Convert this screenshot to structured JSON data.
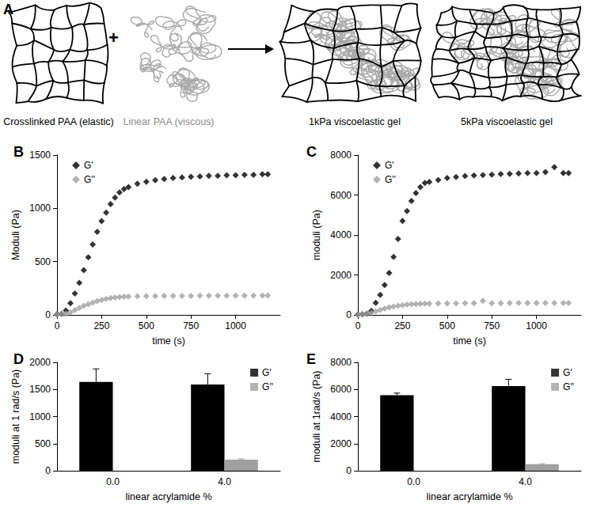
{
  "diagram": {
    "panel": "A",
    "operator": "+",
    "parts": [
      "Crosslinked PAA (elastic)",
      "Linear PAA (viscous)",
      "1kPa viscoelastic gel",
      "5kPa viscoelastic gel"
    ]
  },
  "chart_data": [
    {
      "panel": "B",
      "type": "scatter",
      "x_label": "time (s)",
      "y_label": "Moduli (Pa)",
      "xlim": [
        0,
        1250
      ],
      "xticks": [
        0,
        250,
        500,
        750,
        1000
      ],
      "ylim": [
        0,
        1500
      ],
      "yticks": [
        0,
        500,
        1000,
        1500
      ],
      "grid": false,
      "legend": "upper left",
      "marker": "diamond",
      "x": [
        0,
        25,
        50,
        75,
        100,
        125,
        150,
        175,
        200,
        225,
        250,
        275,
        300,
        325,
        350,
        375,
        400,
        450,
        500,
        550,
        600,
        650,
        700,
        750,
        800,
        850,
        900,
        950,
        1000,
        1050,
        1100,
        1150,
        1180
      ],
      "series": [
        {
          "name": "G'",
          "color": "#000000",
          "values": [
            5,
            10,
            40,
            110,
            200,
            300,
            420,
            540,
            660,
            780,
            880,
            960,
            1040,
            1100,
            1150,
            1180,
            1200,
            1230,
            1250,
            1265,
            1275,
            1285,
            1290,
            1295,
            1300,
            1305,
            1305,
            1310,
            1310,
            1315,
            1315,
            1320,
            1320
          ]
        },
        {
          "name": "G''",
          "color": "#a0a0a0",
          "values": [
            2,
            5,
            12,
            25,
            45,
            65,
            85,
            100,
            115,
            130,
            140,
            150,
            158,
            163,
            167,
            170,
            172,
            175,
            176,
            177,
            178,
            178,
            179,
            179,
            180,
            180,
            180,
            181,
            181,
            181,
            182,
            182,
            182
          ]
        }
      ]
    },
    {
      "panel": "C",
      "type": "scatter",
      "x_label": "time (s)",
      "y_label": "moduli (Pa)",
      "xlim": [
        0,
        1250
      ],
      "xticks": [
        0,
        250,
        500,
        750,
        1000
      ],
      "ylim": [
        0,
        8000
      ],
      "yticks": [
        0,
        2000,
        4000,
        6000,
        8000
      ],
      "grid": false,
      "legend": "upper left",
      "marker": "diamond",
      "x": [
        0,
        25,
        50,
        75,
        100,
        125,
        150,
        175,
        200,
        225,
        250,
        275,
        300,
        325,
        350,
        375,
        400,
        450,
        500,
        550,
        600,
        650,
        700,
        750,
        800,
        850,
        900,
        950,
        1000,
        1050,
        1100,
        1150,
        1180
      ],
      "series": [
        {
          "name": "G'",
          "color": "#000000",
          "values": [
            20,
            30,
            60,
            200,
            600,
            1000,
            1500,
            2100,
            2900,
            3800,
            4700,
            5200,
            5700,
            6100,
            6400,
            6600,
            6650,
            6750,
            6850,
            6900,
            6950,
            6980,
            7000,
            7020,
            7050,
            7060,
            7080,
            7100,
            7100,
            7150,
            7400,
            7100,
            7100
          ]
        },
        {
          "name": "G''",
          "color": "#a0a0a0",
          "values": [
            10,
            20,
            50,
            100,
            180,
            250,
            320,
            380,
            420,
            460,
            490,
            510,
            530,
            540,
            550,
            560,
            565,
            570,
            575,
            578,
            580,
            582,
            700,
            585,
            588,
            590,
            590,
            592,
            592,
            594,
            594,
            595,
            595
          ]
        }
      ]
    },
    {
      "panel": "D",
      "type": "bar",
      "x_label": "linear acrylamide %",
      "y_label": "moduli at 1 rad/s (Pa)",
      "categories": [
        "0.0",
        "4.0"
      ],
      "ylim": [
        0,
        2000
      ],
      "yticks": [
        0,
        500,
        1000,
        1500,
        2000
      ],
      "grid": false,
      "legend": "upper right",
      "series": [
        {
          "name": "G'",
          "color": "#000000",
          "values": [
            1640,
            1590
          ],
          "errors": [
            240,
            200
          ]
        },
        {
          "name": "G''",
          "color": "#a0a0a0",
          "values": [
            0,
            205
          ],
          "errors": [
            null,
            15
          ]
        }
      ]
    },
    {
      "panel": "E",
      "type": "bar",
      "x_label": "linear acrylamide %",
      "y_label": "moduli at 1rad/s (Pa)",
      "categories": [
        "0.0",
        "4.0"
      ],
      "ylim": [
        0,
        8000
      ],
      "yticks": [
        0,
        2000,
        4000,
        6000,
        8000
      ],
      "grid": false,
      "legend": "upper right",
      "series": [
        {
          "name": "G'",
          "color": "#000000",
          "values": [
            5580,
            6250
          ],
          "errors": [
            150,
            500
          ]
        },
        {
          "name": "G''",
          "color": "#a0a0a0",
          "values": [
            0,
            480
          ],
          "errors": [
            null,
            40
          ]
        }
      ]
    }
  ]
}
